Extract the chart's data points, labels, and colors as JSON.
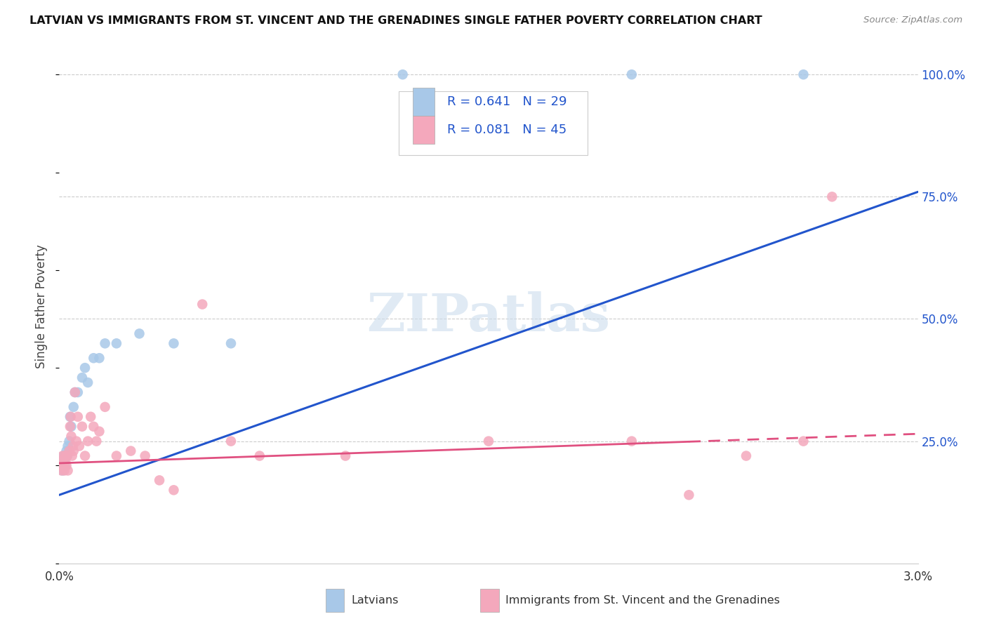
{
  "title": "LATVIAN VS IMMIGRANTS FROM ST. VINCENT AND THE GRENADINES SINGLE FATHER POVERTY CORRELATION CHART",
  "source": "Source: ZipAtlas.com",
  "ylabel": "Single Father Poverty",
  "x_min": 0.0,
  "x_max": 0.03,
  "y_min": 0.0,
  "y_max": 1.05,
  "x_ticks": [
    0.0,
    0.005,
    0.01,
    0.015,
    0.02,
    0.025,
    0.03
  ],
  "x_tick_labels": [
    "0.0%",
    "",
    "",
    "",
    "",
    "",
    "3.0%"
  ],
  "y_tick_labels_right": [
    "100.0%",
    "75.0%",
    "50.0%",
    "25.0%"
  ],
  "y_tick_positions_right": [
    1.0,
    0.75,
    0.5,
    0.25
  ],
  "legend_r1": "R = 0.641",
  "legend_n1": "N = 29",
  "legend_r2": "R = 0.081",
  "legend_n2": "N = 45",
  "blue_color": "#a8c8e8",
  "pink_color": "#f4a8bc",
  "line_blue": "#2255cc",
  "line_pink": "#e05080",
  "text_blue": "#2255cc",
  "watermark": "ZIPatlas",
  "legend_label1": "Latvians",
  "legend_label2": "Immigrants from St. Vincent and the Grenadines",
  "latvian_x": [
    8e-05,
    0.0001,
    0.00012,
    0.00015,
    0.00018,
    0.0002,
    0.00022,
    0.00025,
    0.00028,
    0.0003,
    0.00035,
    0.00038,
    0.00042,
    0.0005,
    0.00055,
    0.00065,
    0.0008,
    0.0009,
    0.001,
    0.0012,
    0.0014,
    0.0016,
    0.002,
    0.0028,
    0.004,
    0.006,
    0.012,
    0.02,
    0.026
  ],
  "latvian_y": [
    0.2,
    0.21,
    0.19,
    0.22,
    0.21,
    0.2,
    0.22,
    0.23,
    0.22,
    0.24,
    0.25,
    0.3,
    0.28,
    0.32,
    0.35,
    0.35,
    0.38,
    0.4,
    0.37,
    0.42,
    0.42,
    0.45,
    0.45,
    0.47,
    0.45,
    0.45,
    1.0,
    1.0,
    1.0
  ],
  "svg_x": [
    5e-05,
    8e-05,
    0.0001,
    0.00012,
    0.00015,
    0.00018,
    0.0002,
    0.00022,
    0.00025,
    0.00028,
    0.0003,
    0.00035,
    0.00038,
    0.0004,
    0.00042,
    0.00045,
    0.00048,
    0.0005,
    0.00055,
    0.0006,
    0.00065,
    0.0007,
    0.0008,
    0.0009,
    0.001,
    0.0011,
    0.0012,
    0.0013,
    0.0014,
    0.0016,
    0.002,
    0.0025,
    0.003,
    0.0035,
    0.004,
    0.005,
    0.006,
    0.007,
    0.01,
    0.015,
    0.02,
    0.022,
    0.024,
    0.026,
    0.027
  ],
  "svg_y": [
    0.2,
    0.19,
    0.21,
    0.22,
    0.2,
    0.19,
    0.22,
    0.21,
    0.2,
    0.22,
    0.19,
    0.23,
    0.28,
    0.3,
    0.26,
    0.22,
    0.24,
    0.23,
    0.35,
    0.25,
    0.3,
    0.24,
    0.28,
    0.22,
    0.25,
    0.3,
    0.28,
    0.25,
    0.27,
    0.32,
    0.22,
    0.23,
    0.22,
    0.17,
    0.15,
    0.53,
    0.25,
    0.22,
    0.22,
    0.25,
    0.25,
    0.14,
    0.22,
    0.25,
    0.75
  ],
  "blue_line_x0": 0.0,
  "blue_line_y0": 0.14,
  "blue_line_x1": 0.03,
  "blue_line_y1": 0.76,
  "pink_line_x0": 0.0,
  "pink_line_y0": 0.205,
  "pink_line_x1": 0.03,
  "pink_line_y1": 0.265
}
